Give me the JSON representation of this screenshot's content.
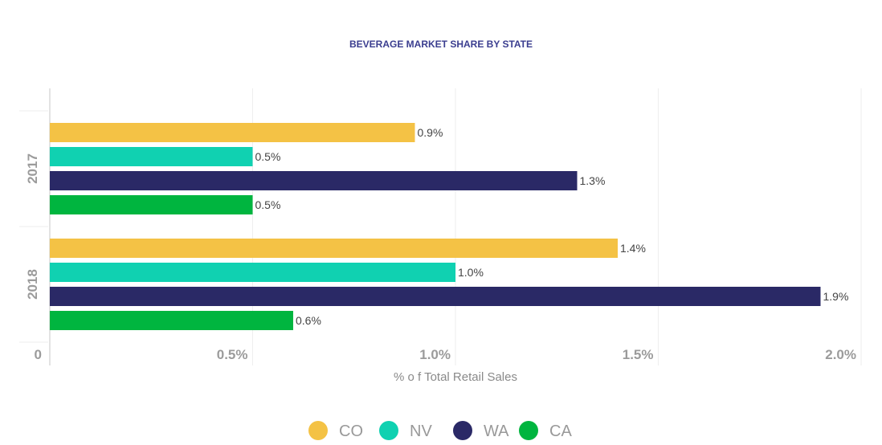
{
  "chart_data": {
    "type": "bar",
    "orientation": "horizontal",
    "title": "BEVERAGE MARKET SHARE BY STATE",
    "xlabel": "% o f Total Retail Sales",
    "ylabel": "",
    "categories": [
      "2017",
      "2018"
    ],
    "series": [
      {
        "name": "CO",
        "color": "#f4c245",
        "values": [
          0.9,
          1.4
        ],
        "labels": [
          "0.9%",
          "1.4%"
        ]
      },
      {
        "name": "NV",
        "color": "#10d1b1",
        "values": [
          0.5,
          1.0
        ],
        "labels": [
          "0.5%",
          "1.0%"
        ]
      },
      {
        "name": "WA",
        "color": "#2a2966",
        "values": [
          1.3,
          1.9
        ],
        "labels": [
          "1.3%",
          "1.9%"
        ]
      },
      {
        "name": "CA",
        "color": "#00b53f",
        "values": [
          0.5,
          0.6
        ],
        "labels": [
          "0.5%",
          "0.6%"
        ]
      }
    ],
    "xlim": [
      0,
      2.0
    ],
    "xticks": [
      0,
      0.5,
      1.0,
      1.5,
      2.0
    ],
    "xtick_labels": [
      "0",
      "0.5%",
      "1.0%",
      "1.5%",
      "2.0%"
    ],
    "grid": true,
    "legend": "bottom-center"
  }
}
